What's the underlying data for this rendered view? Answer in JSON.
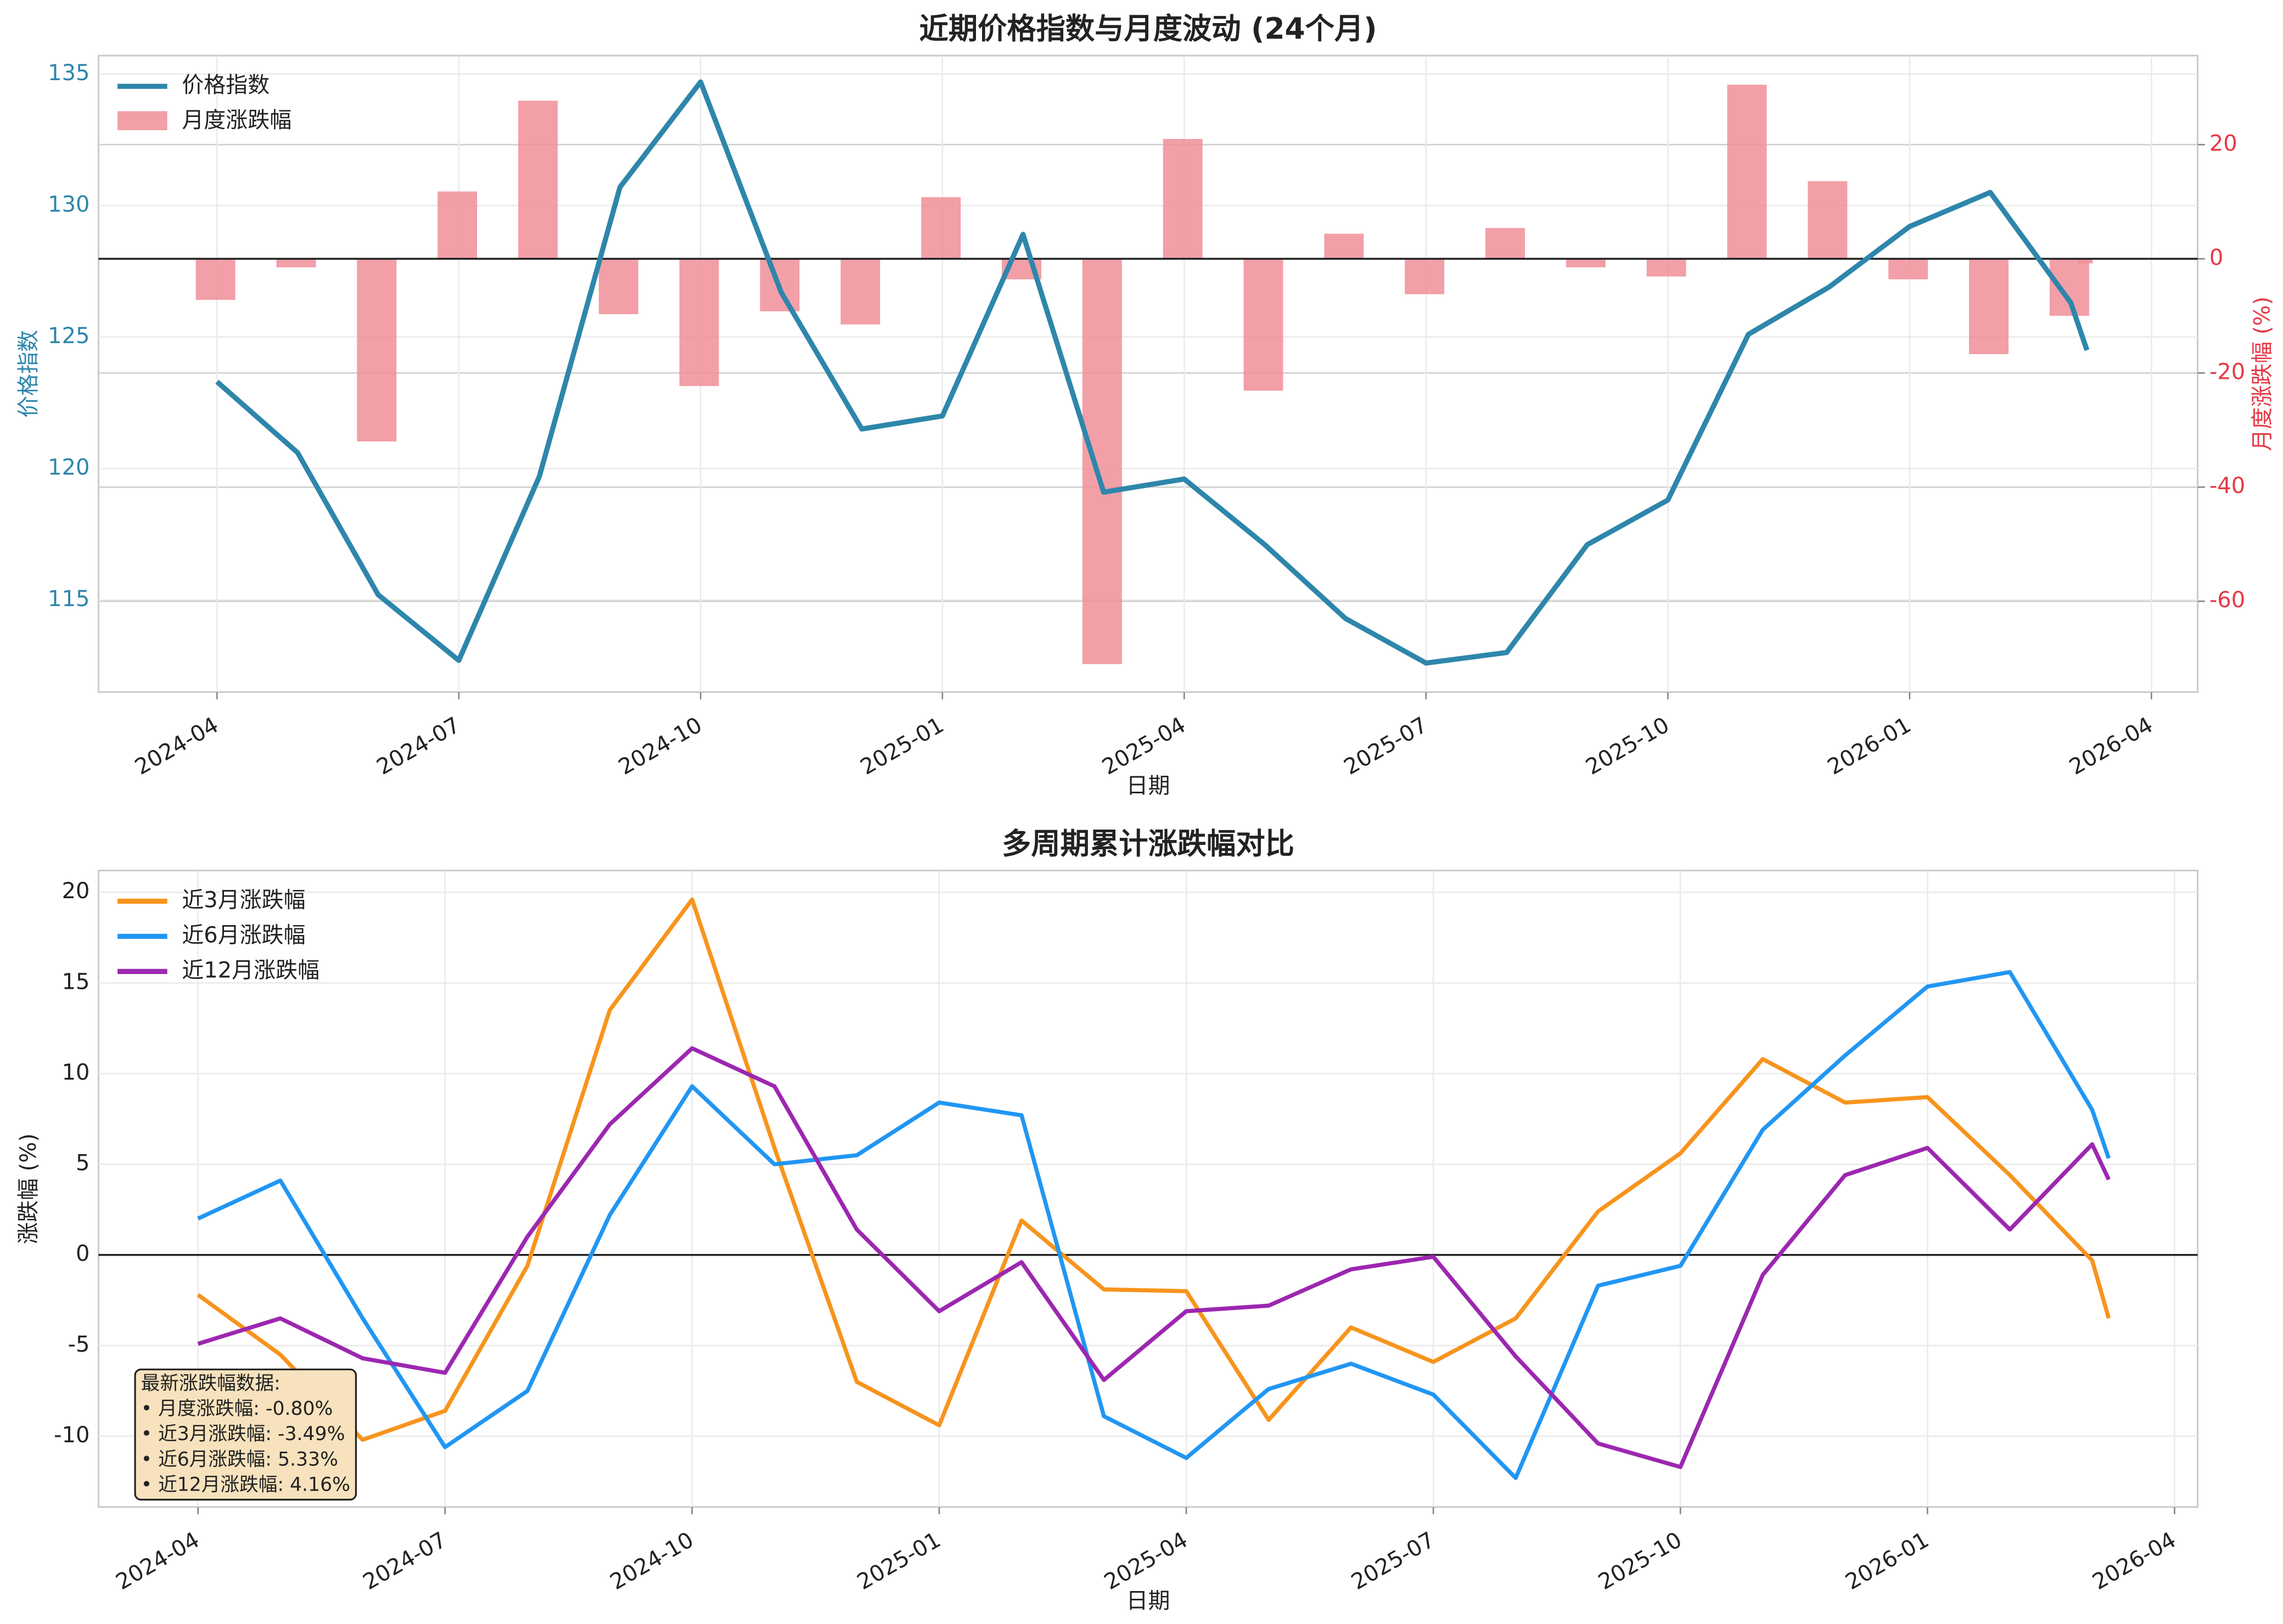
{
  "chart_data": [
    {
      "type": "line",
      "title": "近期价格指数与月度波动 (24个月)",
      "xlabel": "日期",
      "ylabel": "价格指数",
      "y2label": "月度涨跌幅 (%)",
      "x": [
        "2024-04",
        "2024-05",
        "2024-06",
        "2024-07",
        "2024-08",
        "2024-09",
        "2024-10",
        "2024-11",
        "2024-12",
        "2025-01",
        "2025-02",
        "2025-03",
        "2025-04",
        "2025-05",
        "2025-06",
        "2025-07",
        "2025-08",
        "2025-09",
        "2025-10",
        "2025-11",
        "2025-12",
        "2026-01",
        "2026-02",
        "2026-03",
        null
      ],
      "xticks": [
        "2024-04",
        "2024-07",
        "2024-10",
        "2025-01",
        "2025-04",
        "2025-07",
        "2025-10",
        "2026-01",
        "2026-04"
      ],
      "ylim": [
        111.5,
        135.7
      ],
      "yticks": [
        115,
        120,
        125,
        130,
        135
      ],
      "y2lim": [
        -75.9,
        35.6
      ],
      "y2ticks": [
        -60,
        -40,
        -20,
        0,
        20
      ],
      "grid": true,
      "legend": "upper left",
      "series": [
        {
          "name": "价格指数",
          "type": "line",
          "color": "#2e86ab",
          "values": [
            123.3,
            120.6,
            115.2,
            112.7,
            119.7,
            130.7,
            134.7,
            126.7,
            121.5,
            122.0,
            128.9,
            119.1,
            119.6,
            117.1,
            114.3,
            112.6,
            113.0,
            117.1,
            118.8,
            125.1,
            126.9,
            129.2,
            130.5,
            126.3,
            124.5
          ]
        },
        {
          "name": "月度涨跌幅",
          "type": "bar",
          "axis": "y2",
          "color": "#f08e99",
          "values": [
            -7.2,
            -1.5,
            -32.0,
            11.8,
            27.7,
            -9.7,
            -22.3,
            -9.2,
            -11.5,
            10.8,
            -3.6,
            -71.0,
            21.0,
            -23.1,
            4.4,
            -6.2,
            5.4,
            -1.5,
            -3.1,
            30.5,
            13.6,
            -3.6,
            -16.7,
            -10.0,
            -0.8
          ]
        }
      ]
    },
    {
      "type": "line",
      "title": "多周期累计涨跌幅对比",
      "xlabel": "日期",
      "ylabel": "涨跌幅 (%)",
      "x": [
        "2024-04",
        "2024-05",
        "2024-06",
        "2024-07",
        "2024-08",
        "2024-09",
        "2024-10",
        "2024-11",
        "2024-12",
        "2025-01",
        "2025-02",
        "2025-03",
        "2025-04",
        "2025-05",
        "2025-06",
        "2025-07",
        "2025-08",
        "2025-09",
        "2025-10",
        "2025-11",
        "2025-12",
        "2026-01",
        "2026-02",
        "2026-03",
        null
      ],
      "xticks": [
        "2024-04",
        "2024-07",
        "2024-10",
        "2025-01",
        "2025-04",
        "2025-07",
        "2025-10",
        "2026-01",
        "2026-04"
      ],
      "ylim": [
        -13.9,
        21.2
      ],
      "yticks": [
        -10,
        -5,
        0,
        5,
        10,
        15,
        20
      ],
      "grid": true,
      "legend": "upper left",
      "annotation": [
        "最新涨跌幅数据:",
        "• 月度涨跌幅: -0.80%",
        "• 近3月涨跌幅: -3.49%",
        "• 近6月涨跌幅: 5.33%",
        "• 近12月涨跌幅: 4.16%"
      ],
      "series": [
        {
          "name": "近3月涨跌幅",
          "color": "#f7941d",
          "values": [
            -2.2,
            -5.5,
            -10.2,
            -8.6,
            -0.6,
            13.5,
            19.6,
            5.9,
            -7.0,
            -9.4,
            1.9,
            -1.9,
            -2.0,
            -9.1,
            -4.0,
            -5.9,
            -3.5,
            2.4,
            5.6,
            10.8,
            8.4,
            8.7,
            4.4,
            -0.3,
            -3.49
          ]
        },
        {
          "name": "近6月涨跌幅",
          "color": "#2196f3",
          "values": [
            2.0,
            4.1,
            -3.5,
            -10.6,
            -7.5,
            2.2,
            9.3,
            5.0,
            5.5,
            8.4,
            7.7,
            -8.9,
            -11.2,
            -7.4,
            -6.0,
            -7.7,
            -12.3,
            -1.7,
            -0.6,
            6.9,
            11.0,
            14.8,
            15.6,
            8.0,
            5.33
          ]
        },
        {
          "name": "近12月涨跌幅",
          "color": "#9c27b0",
          "values": [
            -4.9,
            -3.5,
            -5.7,
            -6.5,
            1.0,
            7.2,
            11.4,
            9.3,
            1.4,
            -3.1,
            -0.4,
            -6.9,
            -3.1,
            -2.8,
            -0.8,
            -0.1,
            -5.6,
            -10.4,
            -11.7,
            -1.1,
            4.4,
            5.9,
            1.4,
            6.1,
            4.16
          ]
        }
      ]
    }
  ]
}
